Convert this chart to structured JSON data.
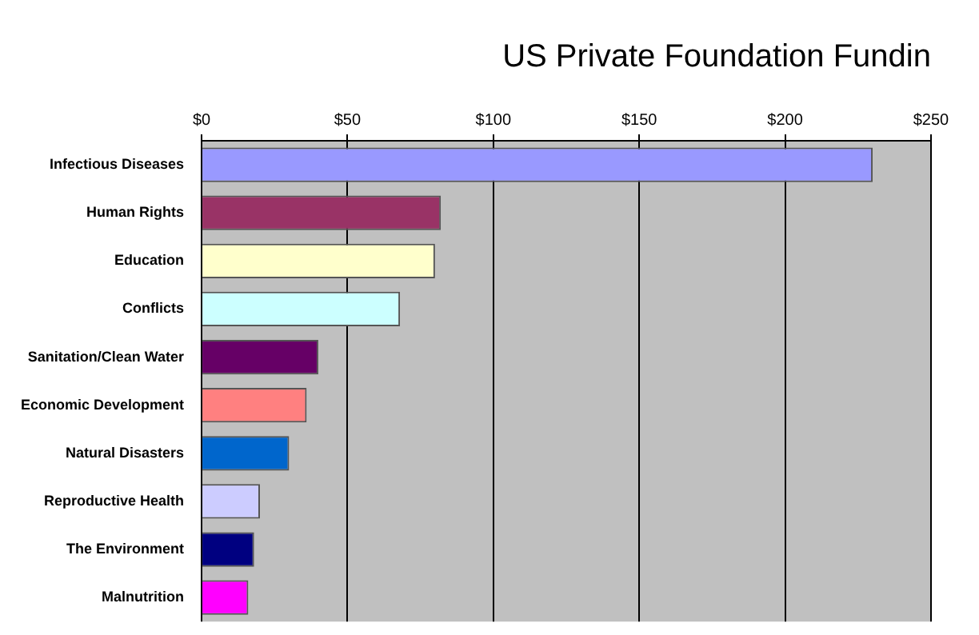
{
  "chart_data": {
    "type": "bar",
    "orientation": "horizontal",
    "title": "US Private Foundation Fundin",
    "categories": [
      "Infectious Diseases",
      "Human Rights",
      "Education",
      "Conflicts",
      "Sanitation/Clean Water",
      "Economic Development",
      "Natural Disasters",
      "Reproductive Health",
      "The Environment",
      "Malnutrition"
    ],
    "values": [
      230,
      82,
      80,
      68,
      40,
      36,
      30,
      20,
      18,
      16
    ],
    "colors": [
      "#9999ff",
      "#993366",
      "#ffffcc",
      "#ccffff",
      "#660066",
      "#ff8080",
      "#0066cc",
      "#ccccff",
      "#000080",
      "#ff00ff"
    ],
    "xlim": [
      0,
      250
    ],
    "xticks": [
      {
        "value": 0,
        "label": "$0"
      },
      {
        "value": 50,
        "label": "$50"
      },
      {
        "value": 100,
        "label": "$100"
      },
      {
        "value": 150,
        "label": "$150"
      },
      {
        "value": 200,
        "label": "$200"
      },
      {
        "value": 250,
        "label": "$250"
      }
    ],
    "grid": "x",
    "legend": false
  }
}
